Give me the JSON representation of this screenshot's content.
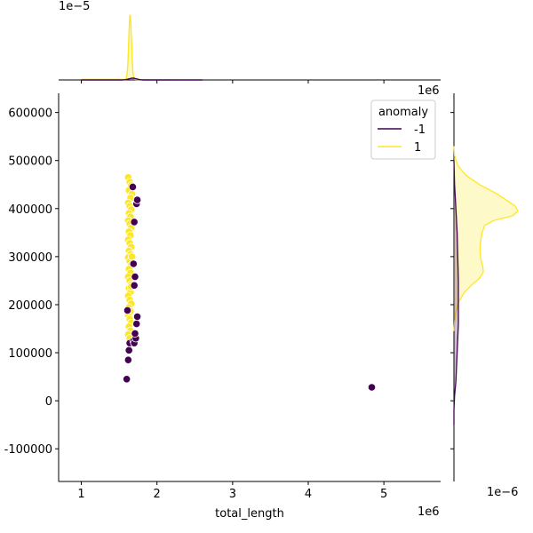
{
  "chart_data": {
    "type": "scatter",
    "title": "",
    "xlabel": "total_length",
    "ylabel": "",
    "x_offset_label": "1e6",
    "xlim": [
      0.7,
      5.75
    ],
    "ylim": [
      -168000,
      640000
    ],
    "x_ticks": [
      1,
      2,
      3,
      4,
      5
    ],
    "y_ticks": [
      -100000,
      0,
      100000,
      200000,
      300000,
      400000,
      500000,
      600000
    ],
    "grid": false,
    "legend": {
      "title": "anomaly",
      "placement": "upper right",
      "entries": [
        {
          "label": "-1",
          "color": "#440154"
        },
        {
          "label": "1",
          "color": "#fde725"
        }
      ]
    },
    "series": [
      {
        "name": "-1",
        "color": "#440154",
        "points": [
          [
            1.6,
            45000
          ],
          [
            1.62,
            85000
          ],
          [
            1.63,
            105000
          ],
          [
            1.64,
            120000
          ],
          [
            1.69,
            125000
          ],
          [
            1.7,
            120000
          ],
          [
            1.72,
            130000
          ],
          [
            1.71,
            140000
          ],
          [
            1.73,
            160000
          ],
          [
            1.74,
            175000
          ],
          [
            1.61,
            188000
          ],
          [
            1.7,
            240000
          ],
          [
            1.71,
            258000
          ],
          [
            1.69,
            285000
          ],
          [
            1.7,
            372000
          ],
          [
            1.73,
            410000
          ],
          [
            1.74,
            418000
          ],
          [
            1.68,
            445000
          ],
          [
            4.84,
            28000
          ]
        ]
      },
      {
        "name": "1",
        "color": "#fde725",
        "points": [
          [
            1.62,
            465000
          ],
          [
            1.64,
            455000
          ],
          [
            1.66,
            448000
          ],
          [
            1.63,
            438000
          ],
          [
            1.67,
            430000
          ],
          [
            1.65,
            422000
          ],
          [
            1.62,
            412000
          ],
          [
            1.64,
            405000
          ],
          [
            1.66,
            398000
          ],
          [
            1.63,
            390000
          ],
          [
            1.65,
            383000
          ],
          [
            1.62,
            375000
          ],
          [
            1.64,
            368000
          ],
          [
            1.66,
            360000
          ],
          [
            1.63,
            352000
          ],
          [
            1.65,
            344000
          ],
          [
            1.62,
            335000
          ],
          [
            1.64,
            328000
          ],
          [
            1.66,
            320000
          ],
          [
            1.63,
            312000
          ],
          [
            1.65,
            305000
          ],
          [
            1.62,
            298000
          ],
          [
            1.64,
            290000
          ],
          [
            1.66,
            282000
          ],
          [
            1.63,
            274000
          ],
          [
            1.65,
            266000
          ],
          [
            1.62,
            258000
          ],
          [
            1.64,
            250000
          ],
          [
            1.66,
            242000
          ],
          [
            1.63,
            234000
          ],
          [
            1.65,
            226000
          ],
          [
            1.62,
            218000
          ],
          [
            1.64,
            210000
          ],
          [
            1.66,
            202000
          ],
          [
            1.63,
            194000
          ],
          [
            1.65,
            186000
          ],
          [
            1.62,
            178000
          ],
          [
            1.64,
            170000
          ],
          [
            1.66,
            162000
          ],
          [
            1.63,
            154000
          ],
          [
            1.65,
            146000
          ],
          [
            1.62,
            138000
          ],
          [
            1.64,
            130000
          ],
          [
            1.66,
            237000
          ],
          [
            1.67,
            300000
          ]
        ]
      }
    ],
    "marginal_x": {
      "type": "kde",
      "offset_label": "1e−5",
      "series": [
        {
          "name": "1",
          "color": "#fde725",
          "peak_x": 1.645,
          "width": 0.018,
          "tail_to": 2.2
        },
        {
          "name": "-1",
          "color": "#440154",
          "peak_x": 1.68,
          "width": 0.05
        }
      ]
    },
    "marginal_y": {
      "type": "kde",
      "offset_label": "1e−6",
      "series": [
        {
          "name": "1",
          "color": "#fde725",
          "profile": [
            [
              530000,
              0.0
            ],
            [
              510000,
              0.01
            ],
            [
              490000,
              0.06
            ],
            [
              470000,
              0.18
            ],
            [
              450000,
              0.4
            ],
            [
              430000,
              0.68
            ],
            [
              415000,
              0.85
            ],
            [
              405000,
              0.96
            ],
            [
              395000,
              1.0
            ],
            [
              385000,
              0.92
            ],
            [
              375000,
              0.62
            ],
            [
              365000,
              0.48
            ],
            [
              350000,
              0.44
            ],
            [
              335000,
              0.42
            ],
            [
              315000,
              0.41
            ],
            [
              295000,
              0.42
            ],
            [
              280000,
              0.45
            ],
            [
              268000,
              0.46
            ],
            [
              255000,
              0.4
            ],
            [
              240000,
              0.27
            ],
            [
              225000,
              0.16
            ],
            [
              205000,
              0.07
            ],
            [
              185000,
              0.03
            ],
            [
              165000,
              0.01
            ],
            [
              145000,
              0.0
            ]
          ]
        },
        {
          "name": "-1",
          "color": "#440154",
          "profile": [
            [
              500000,
              0.0
            ],
            [
              450000,
              0.01
            ],
            [
              400000,
              0.03
            ],
            [
              350000,
              0.05
            ],
            [
              300000,
              0.06
            ],
            [
              250000,
              0.07
            ],
            [
              220000,
              0.07
            ],
            [
              190000,
              0.07
            ],
            [
              160000,
              0.07
            ],
            [
              130000,
              0.06
            ],
            [
              100000,
              0.05
            ],
            [
              70000,
              0.04
            ],
            [
              40000,
              0.03
            ],
            [
              10000,
              0.01
            ],
            [
              -20000,
              0.0
            ],
            [
              -50000,
              0.0
            ]
          ]
        }
      ]
    }
  }
}
